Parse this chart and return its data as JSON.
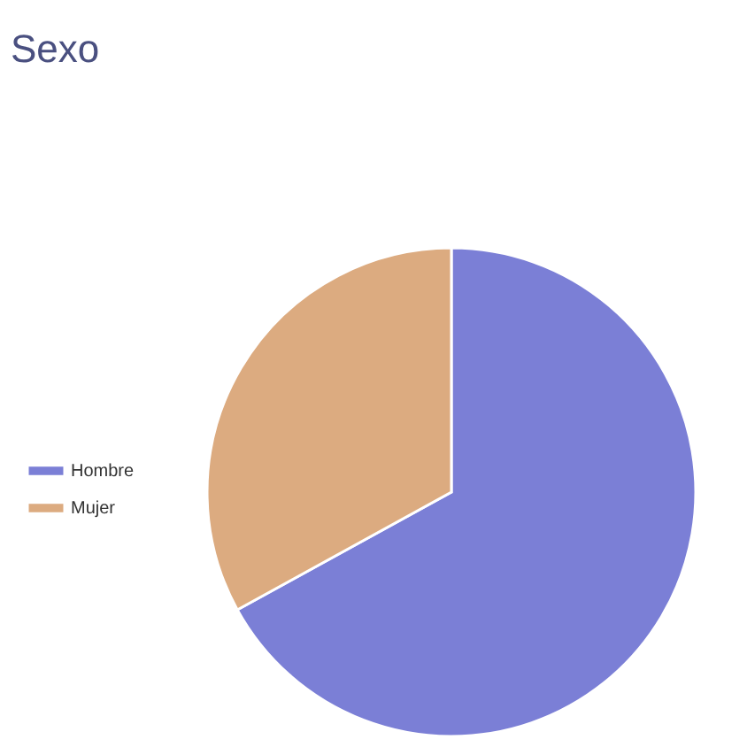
{
  "chart_data": {
    "type": "pie",
    "title": "Sexo",
    "categories": [
      "Hombre",
      "Mujer"
    ],
    "values": [
      67,
      33
    ],
    "colors": [
      "#7b7fd6",
      "#dcab80"
    ],
    "legend": "left"
  }
}
